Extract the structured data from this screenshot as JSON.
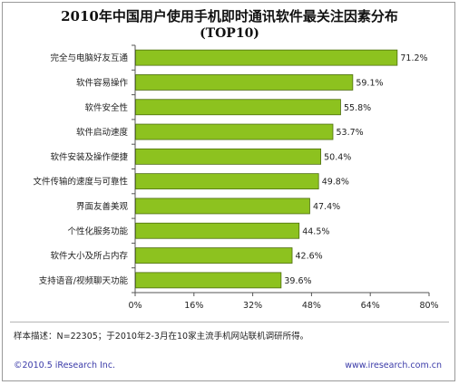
{
  "chart_data": {
    "type": "bar",
    "orientation": "horizontal",
    "title": "2010年中国用户使用手机即时通讯软件最关注因素分布",
    "subtitle": "(TOP10)",
    "categories": [
      "完全与电脑好友互通",
      "软件容易操作",
      "软件安全性",
      "软件启动速度",
      "软件安装及操作便捷",
      "文件传输的速度与可靠性",
      "界面友善美观",
      "个性化服务功能",
      "软件大小及所占内存",
      "支持语音/视频聊天功能"
    ],
    "values": [
      71.2,
      59.1,
      55.8,
      53.7,
      50.4,
      49.8,
      47.4,
      44.5,
      42.6,
      39.6
    ],
    "value_labels": [
      "71.2%",
      "59.1%",
      "55.8%",
      "53.7%",
      "50.4%",
      "49.8%",
      "47.4%",
      "44.5%",
      "42.6%",
      "39.6%"
    ],
    "xlim": [
      0,
      80
    ],
    "xticks": [
      0,
      16,
      32,
      48,
      64,
      80
    ],
    "xtick_labels": [
      "0%",
      "16%",
      "32%",
      "48%",
      "64%",
      "80%"
    ],
    "xlabel": "",
    "ylabel": "",
    "grid": false,
    "legend": "none",
    "bar_color": "#8dc21f",
    "bar_edge_color": "#4e6e10"
  },
  "footnote": "样本描述：N=22305；于2010年2-3月在10家主流手机网站联机调研所得。",
  "copyright": "©2010.5 iResearch Inc.",
  "website": "www.iresearch.com.cn"
}
